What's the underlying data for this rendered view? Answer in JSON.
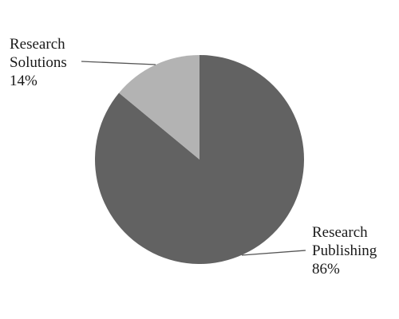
{
  "chart_data": {
    "type": "pie",
    "slices": [
      {
        "label": [
          "Research",
          "Publishing"
        ],
        "value": 86,
        "value_label": "86%",
        "color": "#626262"
      },
      {
        "label": [
          "Research",
          "Solutions"
        ],
        "value": 14,
        "value_label": "14%",
        "color": "#b3b3b3"
      }
    ],
    "start_angle": "12 o'clock",
    "direction": "clockwise",
    "legend": "none",
    "labels": "outside with leader lines"
  }
}
